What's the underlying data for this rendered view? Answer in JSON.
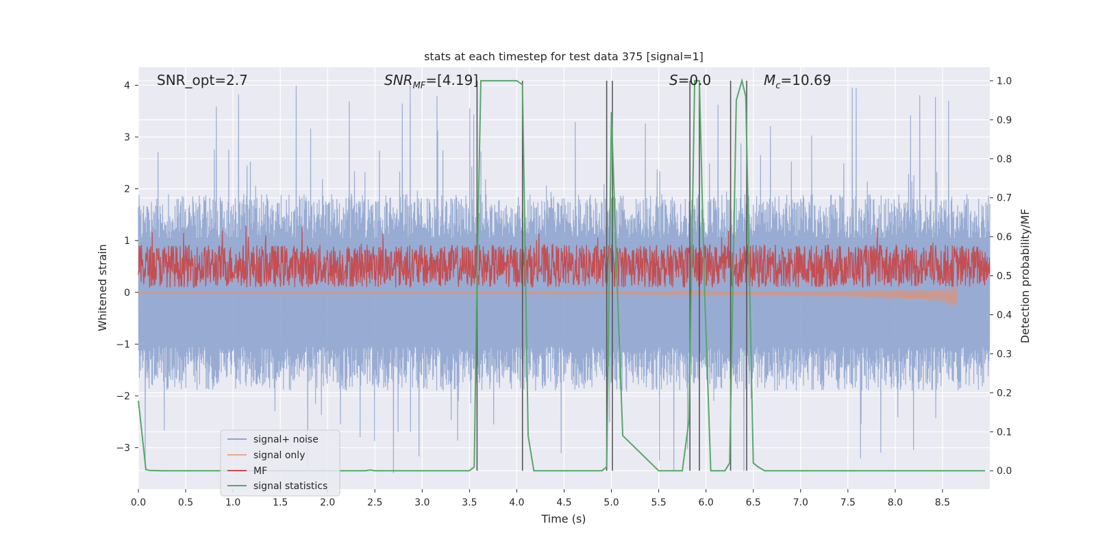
{
  "chart_data": {
    "type": "line",
    "title": "stats at each timestep for test data 375 [signal=1]",
    "xlabel": "Time (s)",
    "ylabel_left": "Whitened strain",
    "ylabel_right": "Detection probability/MF",
    "xlim": [
      0.0,
      9.0
    ],
    "ylim_left": [
      -3.8,
      4.35
    ],
    "ylim_right": [
      -0.047,
      1.035
    ],
    "xticks": [
      "0.0",
      "0.5",
      "1.0",
      "1.5",
      "2.0",
      "2.5",
      "3.0",
      "3.5",
      "4.0",
      "4.5",
      "5.0",
      "5.5",
      "6.0",
      "6.5",
      "7.0",
      "7.5",
      "8.0",
      "8.5"
    ],
    "yticks_left": [
      "4",
      "3",
      "2",
      "1",
      "0",
      "−1",
      "−2",
      "−3"
    ],
    "yticks_right": [
      "1.0",
      "0.9",
      "0.8",
      "0.7",
      "0.6",
      "0.5",
      "0.4",
      "0.3",
      "0.2",
      "0.1",
      "0.0"
    ],
    "annotations": {
      "snr_opt": "SNR_opt=2.7",
      "snr_mf_main": "SNR",
      "snr_mf_sub": "MF",
      "snr_mf_value": "=[4.19]",
      "s_symbol": "S",
      "s_value": "=0.0",
      "mc_symbol": "M",
      "mc_sub": "c",
      "mc_value": "=10.69"
    },
    "legend": {
      "placement": "lower-left",
      "entries": [
        "signal+ noise",
        "signal only",
        "MF",
        "signal statistics"
      ]
    },
    "colors": {
      "signal_noise": "#8fa5cf",
      "signal_only": "#d9937a",
      "mf": "#c44e52",
      "signal_statistics": "#55a868",
      "vlines": "#555555",
      "background": "#eaeaf2",
      "grid": "#ffffff"
    },
    "series": [
      {
        "name": "signal+ noise",
        "axis": "left",
        "envelope": {
          "typical": [
            -1.9,
            1.9
          ],
          "extreme": [
            -3.5,
            4.0
          ]
        }
      },
      {
        "name": "signal only",
        "axis": "left",
        "description_values": [
          [
            0.0,
            0.0
          ],
          [
            5.0,
            -0.02
          ],
          [
            7.5,
            -0.1
          ],
          [
            8.5,
            -0.25
          ],
          [
            8.65,
            -0.45
          ]
        ]
      },
      {
        "name": "MF",
        "axis": "right",
        "band": [
          0.47,
          0.58
        ]
      },
      {
        "name": "signal statistics",
        "axis": "right",
        "x": [
          0.0,
          0.08,
          0.12,
          0.25,
          0.5,
          1.0,
          1.5,
          2.0,
          2.4,
          2.45,
          2.5,
          3.0,
          3.5,
          3.55,
          3.58,
          3.62,
          4.0,
          4.06,
          4.12,
          4.18,
          4.5,
          4.9,
          4.95,
          5.0,
          5.05,
          5.12,
          5.5,
          5.75,
          5.82,
          5.88,
          5.93,
          5.98,
          6.05,
          6.1,
          6.2,
          6.25,
          6.32,
          6.38,
          6.42,
          6.5,
          6.55,
          6.62,
          7.0,
          7.5,
          8.0,
          8.5,
          8.95
        ],
        "y": [
          0.18,
          0.003,
          0.001,
          0.0,
          0.0,
          0.0,
          0.0,
          0.0,
          0.0,
          0.002,
          0.0,
          0.0,
          0.0,
          0.01,
          0.5,
          1.0,
          1.0,
          0.99,
          0.09,
          0.0,
          0.0,
          0.0,
          0.01,
          0.92,
          0.55,
          0.09,
          0.0,
          0.0,
          0.13,
          1.0,
          1.0,
          0.5,
          0.0,
          0.0,
          0.0,
          0.02,
          0.95,
          1.0,
          0.96,
          0.02,
          0.01,
          0.0,
          0.0,
          0.0,
          0.0,
          0.0,
          0.0
        ]
      }
    ],
    "vertical_lines_x": [
      3.58,
      4.06,
      4.95,
      5.01,
      5.83,
      5.93,
      6.26,
      6.43
    ]
  }
}
